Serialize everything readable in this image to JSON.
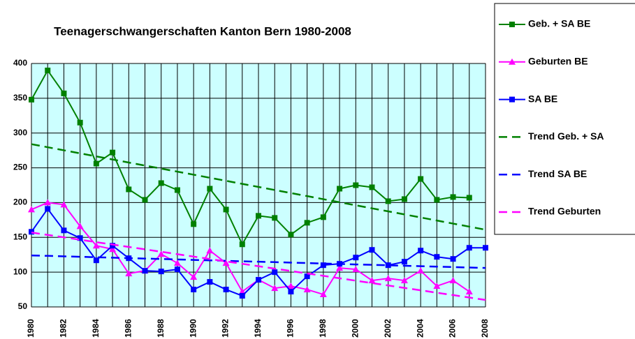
{
  "chart_data": {
    "type": "line",
    "title": "Teenagerschwangerschaften Kanton Bern 1980-2008",
    "categories": [
      "1980",
      null,
      "1982",
      null,
      "1984",
      null,
      "1986",
      null,
      "1988",
      null,
      "1990",
      null,
      "1992",
      null,
      "1994",
      null,
      "1996",
      null,
      "1998",
      null,
      "2000",
      null,
      "2002",
      null,
      "2004",
      null,
      "2006",
      null,
      "2008"
    ],
    "ylim": [
      50,
      400
    ],
    "yticks": [
      50,
      100,
      150,
      200,
      250,
      300,
      350,
      400
    ],
    "grid": true,
    "legend": "right",
    "series": [
      {
        "name": "Geb. + SA BE",
        "color": "#008000",
        "marker": "square",
        "dash": false,
        "values": [
          348,
          390,
          357,
          315,
          256,
          272,
          219,
          204,
          228,
          218,
          169,
          220,
          190,
          140,
          181,
          178,
          154,
          171,
          179,
          220,
          225,
          222,
          202,
          205,
          234,
          204,
          208,
          207,
          null
        ]
      },
      {
        "name": "Geburten BE",
        "color": "#ff00ff",
        "marker": "triangle",
        "dash": false,
        "values": [
          190,
          200,
          197,
          166,
          138,
          133,
          98,
          102,
          126,
          113,
          93,
          131,
          113,
          72,
          89,
          77,
          80,
          75,
          68,
          106,
          104,
          88,
          91,
          88,
          102,
          80,
          88,
          72,
          null
        ]
      },
      {
        "name": "SA BE",
        "color": "#0000ff",
        "marker": "square",
        "dash": false,
        "values": [
          158,
          191,
          160,
          149,
          117,
          138,
          120,
          102,
          101,
          104,
          75,
          86,
          75,
          66,
          89,
          100,
          72,
          94,
          110,
          112,
          121,
          132,
          110,
          115,
          131,
          122,
          119,
          135,
          135
        ]
      },
      {
        "name": "Trend Geb. + SA",
        "color": "#008000",
        "marker": null,
        "dash": true,
        "values": [
          284,
          279.6,
          275.2,
          270.8,
          266.4,
          262.0,
          257.6,
          253.2,
          248.9,
          244.5,
          240.1,
          235.7,
          231.3,
          226.9,
          222.5,
          218.1,
          213.7,
          209.3,
          204.9,
          200.5,
          196.1,
          191.7,
          187.4,
          183.0,
          178.6,
          174.2,
          169.8,
          165.4,
          161
        ]
      },
      {
        "name": "Trend SA BE",
        "color": "#0000ff",
        "marker": null,
        "dash": true,
        "values": [
          124,
          123.4,
          122.7,
          122.1,
          121.4,
          120.8,
          120.1,
          119.5,
          118.9,
          118.2,
          117.6,
          116.9,
          116.3,
          115.6,
          115,
          114.4,
          113.7,
          113.1,
          112.4,
          111.8,
          111.1,
          110.5,
          109.9,
          109.2,
          108.6,
          107.9,
          107.3,
          106.6,
          106
        ]
      },
      {
        "name": "Trend Geburten",
        "color": "#ff00ff",
        "marker": null,
        "dash": true,
        "values": [
          157,
          153.5,
          150.1,
          146.6,
          143.1,
          139.7,
          136.2,
          132.8,
          129.3,
          125.8,
          122.4,
          118.9,
          115.4,
          112,
          108.5,
          105.1,
          101.6,
          98.1,
          94.7,
          91.2,
          87.7,
          84.3,
          80.8,
          77.3,
          73.9,
          70.4,
          67,
          63.5,
          60
        ]
      }
    ]
  }
}
